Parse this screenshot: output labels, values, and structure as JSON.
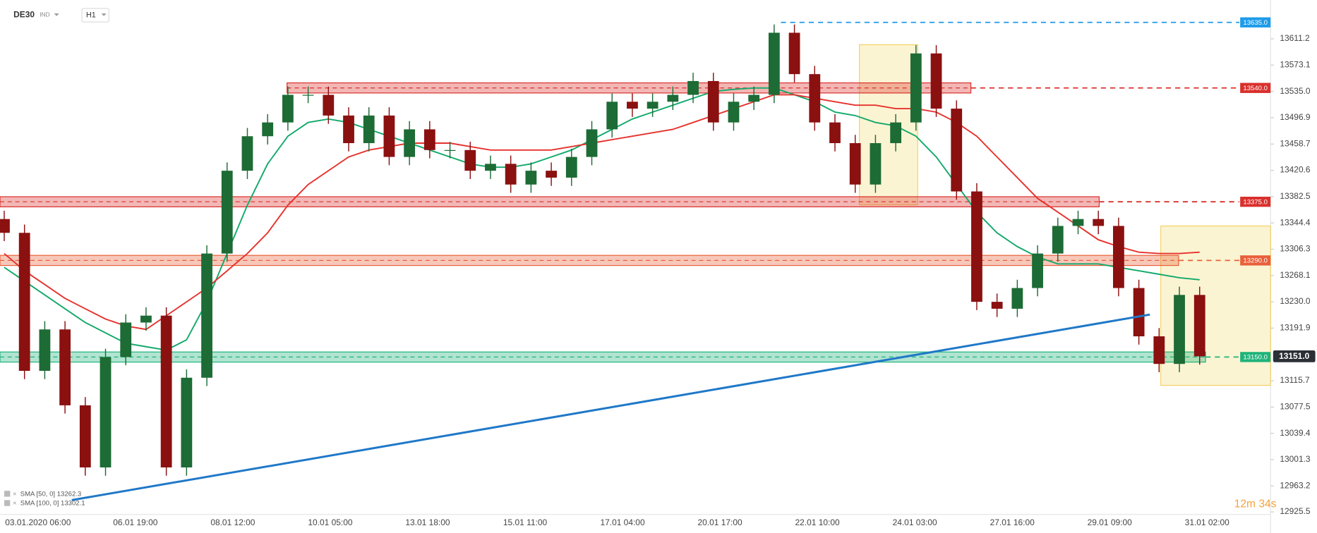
{
  "chart_data": {
    "type": "candlestick",
    "symbol": "DE30",
    "instrument_class": "IND",
    "timeframe": "H1",
    "timer": "12m 34s",
    "x_labels": [
      "03.01.2020 06:00",
      "06.01 19:00",
      "08.01 12:00",
      "10.01 05:00",
      "13.01 18:00",
      "15.01 11:00",
      "17.01 04:00",
      "20.01 17:00",
      "22.01 10:00",
      "24.01 03:00",
      "27.01 16:00",
      "29.01 09:00",
      "31.01 02:00"
    ],
    "ylim": [
      12913.3,
      13649.1
    ],
    "yticks": [
      13611.2,
      13573.1,
      {
        "value": 13535.0,
        "label": "13535.0"
      },
      13496.9,
      13458.7,
      13420.6,
      13382.5,
      13344.4,
      13306.3,
      13268.1,
      {
        "value": 13230.0,
        "label": "13230.0"
      },
      13191.9,
      13115.7,
      13077.5,
      13039.4,
      13001.3,
      12963.2,
      12925.5
    ],
    "up_color": "#1d6b35",
    "down_color": "#8b1010",
    "open": [
      13350,
      13330,
      13130,
      13190,
      13080,
      12990,
      13150,
      13200,
      13210,
      12990,
      13120,
      13300,
      13420,
      13470,
      13490,
      13530,
      13530,
      13500,
      13460,
      13500,
      13440,
      13480,
      13450,
      13450,
      13420,
      13430,
      13400,
      13420,
      13410,
      13440,
      13480,
      13520,
      13510,
      13520,
      13530,
      13550,
      13490,
      13520,
      13530,
      13620,
      13560,
      13490,
      13460,
      13400,
      13460,
      13490,
      13590,
      13510,
      13390,
      13230,
      13220,
      13250,
      13300,
      13340,
      13350,
      13340,
      13250,
      13180,
      13140,
      13240
    ],
    "high": [
      13362,
      13342,
      13202,
      13202,
      13092,
      13162,
      13212,
      13222,
      13222,
      13132,
      13312,
      13432,
      13482,
      13502,
      13542,
      13542,
      13542,
      13512,
      13512,
      13512,
      13492,
      13492,
      13462,
      13462,
      13442,
      13442,
      13432,
      13432,
      13452,
      13492,
      13532,
      13532,
      13532,
      13542,
      13562,
      13562,
      13532,
      13542,
      13632,
      13632,
      13572,
      13502,
      13472,
      13472,
      13502,
      13602,
      13602,
      13522,
      13402,
      13242,
      13262,
      13312,
      13352,
      13362,
      13362,
      13352,
      13262,
      13192,
      13252,
      13252
    ],
    "low": [
      13318,
      13118,
      13118,
      13068,
      12978,
      12978,
      13138,
      13188,
      12978,
      12978,
      13108,
      13288,
      13408,
      13458,
      13478,
      13518,
      13488,
      13448,
      13448,
      13428,
      13428,
      13438,
      13438,
      13408,
      13408,
      13388,
      13388,
      13398,
      13398,
      13428,
      13468,
      13498,
      13498,
      13508,
      13518,
      13478,
      13478,
      13508,
      13518,
      13548,
      13478,
      13448,
      13388,
      13388,
      13448,
      13478,
      13498,
      13378,
      13218,
      13208,
      13208,
      13238,
      13288,
      13328,
      13328,
      13238,
      13168,
      13128,
      13128,
      13139
    ],
    "close": [
      13330,
      13130,
      13190,
      13080,
      12990,
      13150,
      13200,
      13210,
      12990,
      13120,
      13300,
      13420,
      13470,
      13490,
      13530,
      13530,
      13500,
      13460,
      13500,
      13440,
      13480,
      13450,
      13450,
      13420,
      13430,
      13400,
      13420,
      13410,
      13440,
      13480,
      13520,
      13510,
      13520,
      13530,
      13550,
      13490,
      13520,
      13530,
      13620,
      13560,
      13490,
      13460,
      13400,
      13460,
      13490,
      13590,
      13510,
      13390,
      13230,
      13220,
      13250,
      13300,
      13340,
      13350,
      13340,
      13250,
      13180,
      13140,
      13240,
      13151
    ],
    "series": [
      {
        "name": "SMA [50, 0] 13262.3",
        "color": "#12a96b",
        "values": [
          13280,
          13260,
          13240,
          13220,
          13200,
          13185,
          13170,
          13165,
          13160,
          13175,
          13230,
          13300,
          13370,
          13430,
          13470,
          13490,
          13495,
          13490,
          13480,
          13470,
          13460,
          13450,
          13440,
          13430,
          13425,
          13425,
          13430,
          13440,
          13450,
          13465,
          13480,
          13495,
          13505,
          13515,
          13525,
          13535,
          13538,
          13540,
          13540,
          13530,
          13520,
          13505,
          13500,
          13490,
          13485,
          13470,
          13440,
          13400,
          13360,
          13330,
          13310,
          13295,
          13285,
          13285,
          13285,
          13280,
          13275,
          13270,
          13265,
          13262
        ]
      },
      {
        "name": "SMA [100, 0] 13302.1",
        "color": "#e5322d",
        "values": [
          13300,
          13275,
          13255,
          13235,
          13220,
          13205,
          13195,
          13190,
          13210,
          13230,
          13250,
          13275,
          13300,
          13330,
          13370,
          13400,
          13420,
          13440,
          13450,
          13455,
          13460,
          13460,
          13460,
          13455,
          13450,
          13450,
          13450,
          13450,
          13455,
          13460,
          13465,
          13470,
          13475,
          13480,
          13490,
          13500,
          13510,
          13520,
          13530,
          13530,
          13525,
          13520,
          13515,
          13515,
          13510,
          13510,
          13505,
          13490,
          13470,
          13440,
          13410,
          13380,
          13360,
          13340,
          13320,
          13310,
          13302,
          13300,
          13300,
          13302
        ]
      }
    ],
    "levels": [
      {
        "value": 13635,
        "label": "13635.0",
        "color": "#1e9be9"
      },
      {
        "value": 13540,
        "label": "13540.0",
        "color": "#d9302c"
      },
      {
        "value": 13375,
        "label": "13375.0",
        "color": "#d9302c"
      },
      {
        "value": 13290,
        "label": "13290.0",
        "color": "#e8603a"
      },
      {
        "value": 13150,
        "label": "13150.0",
        "color": "#1fb37a"
      }
    ],
    "last_price": {
      "value": 13151,
      "label": "13151.0"
    }
  }
}
